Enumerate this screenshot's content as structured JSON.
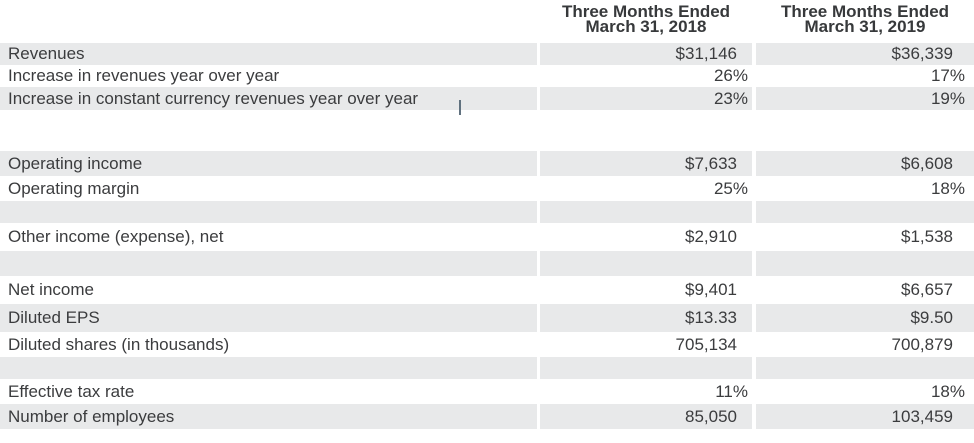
{
  "colors": {
    "row_shade": "#e8e9ea",
    "text": "#3b3c3e",
    "header_text": "#37393b",
    "background": "#ffffff",
    "caret_artifact": "#60717f"
  },
  "table": {
    "column_headers": {
      "col_2018": {
        "line1": "Three Months Ended",
        "line2": "March 31, 2018"
      },
      "col_2019": {
        "line1": "Three Months Ended",
        "line2": "March 31, 2019"
      }
    },
    "rows": [
      {
        "label": "Revenues",
        "v2018": "$31,146",
        "v2019": "$36,339"
      },
      {
        "label": "Increase in revenues year over year",
        "v2018": "26%",
        "v2019": "17%"
      },
      {
        "label": "Increase in constant currency revenues year over year",
        "v2018": "23%",
        "v2019": "19%"
      },
      {
        "label": "",
        "v2018": "",
        "v2019": ""
      },
      {
        "label": "Operating income",
        "v2018": "$7,633",
        "v2019": "$6,608"
      },
      {
        "label": "Operating margin",
        "v2018": "25%",
        "v2019": "18%"
      },
      {
        "label": "",
        "v2018": "",
        "v2019": ""
      },
      {
        "label": "Other income (expense), net",
        "v2018": "$2,910",
        "v2019": "$1,538"
      },
      {
        "label": "",
        "v2018": "",
        "v2019": ""
      },
      {
        "label": "Net income",
        "v2018": "$9,401",
        "v2019": "$6,657"
      },
      {
        "label": "Diluted EPS",
        "v2018": "$13.33",
        "v2019": "$9.50"
      },
      {
        "label": "Diluted shares (in thousands)",
        "v2018": "705,134",
        "v2019": "700,879"
      },
      {
        "label": "",
        "v2018": "",
        "v2019": ""
      },
      {
        "label": "Effective tax rate",
        "v2018": "11%",
        "v2019": "18%"
      },
      {
        "label": "Number of employees",
        "v2018": "85,050",
        "v2019": "103,459"
      }
    ]
  }
}
